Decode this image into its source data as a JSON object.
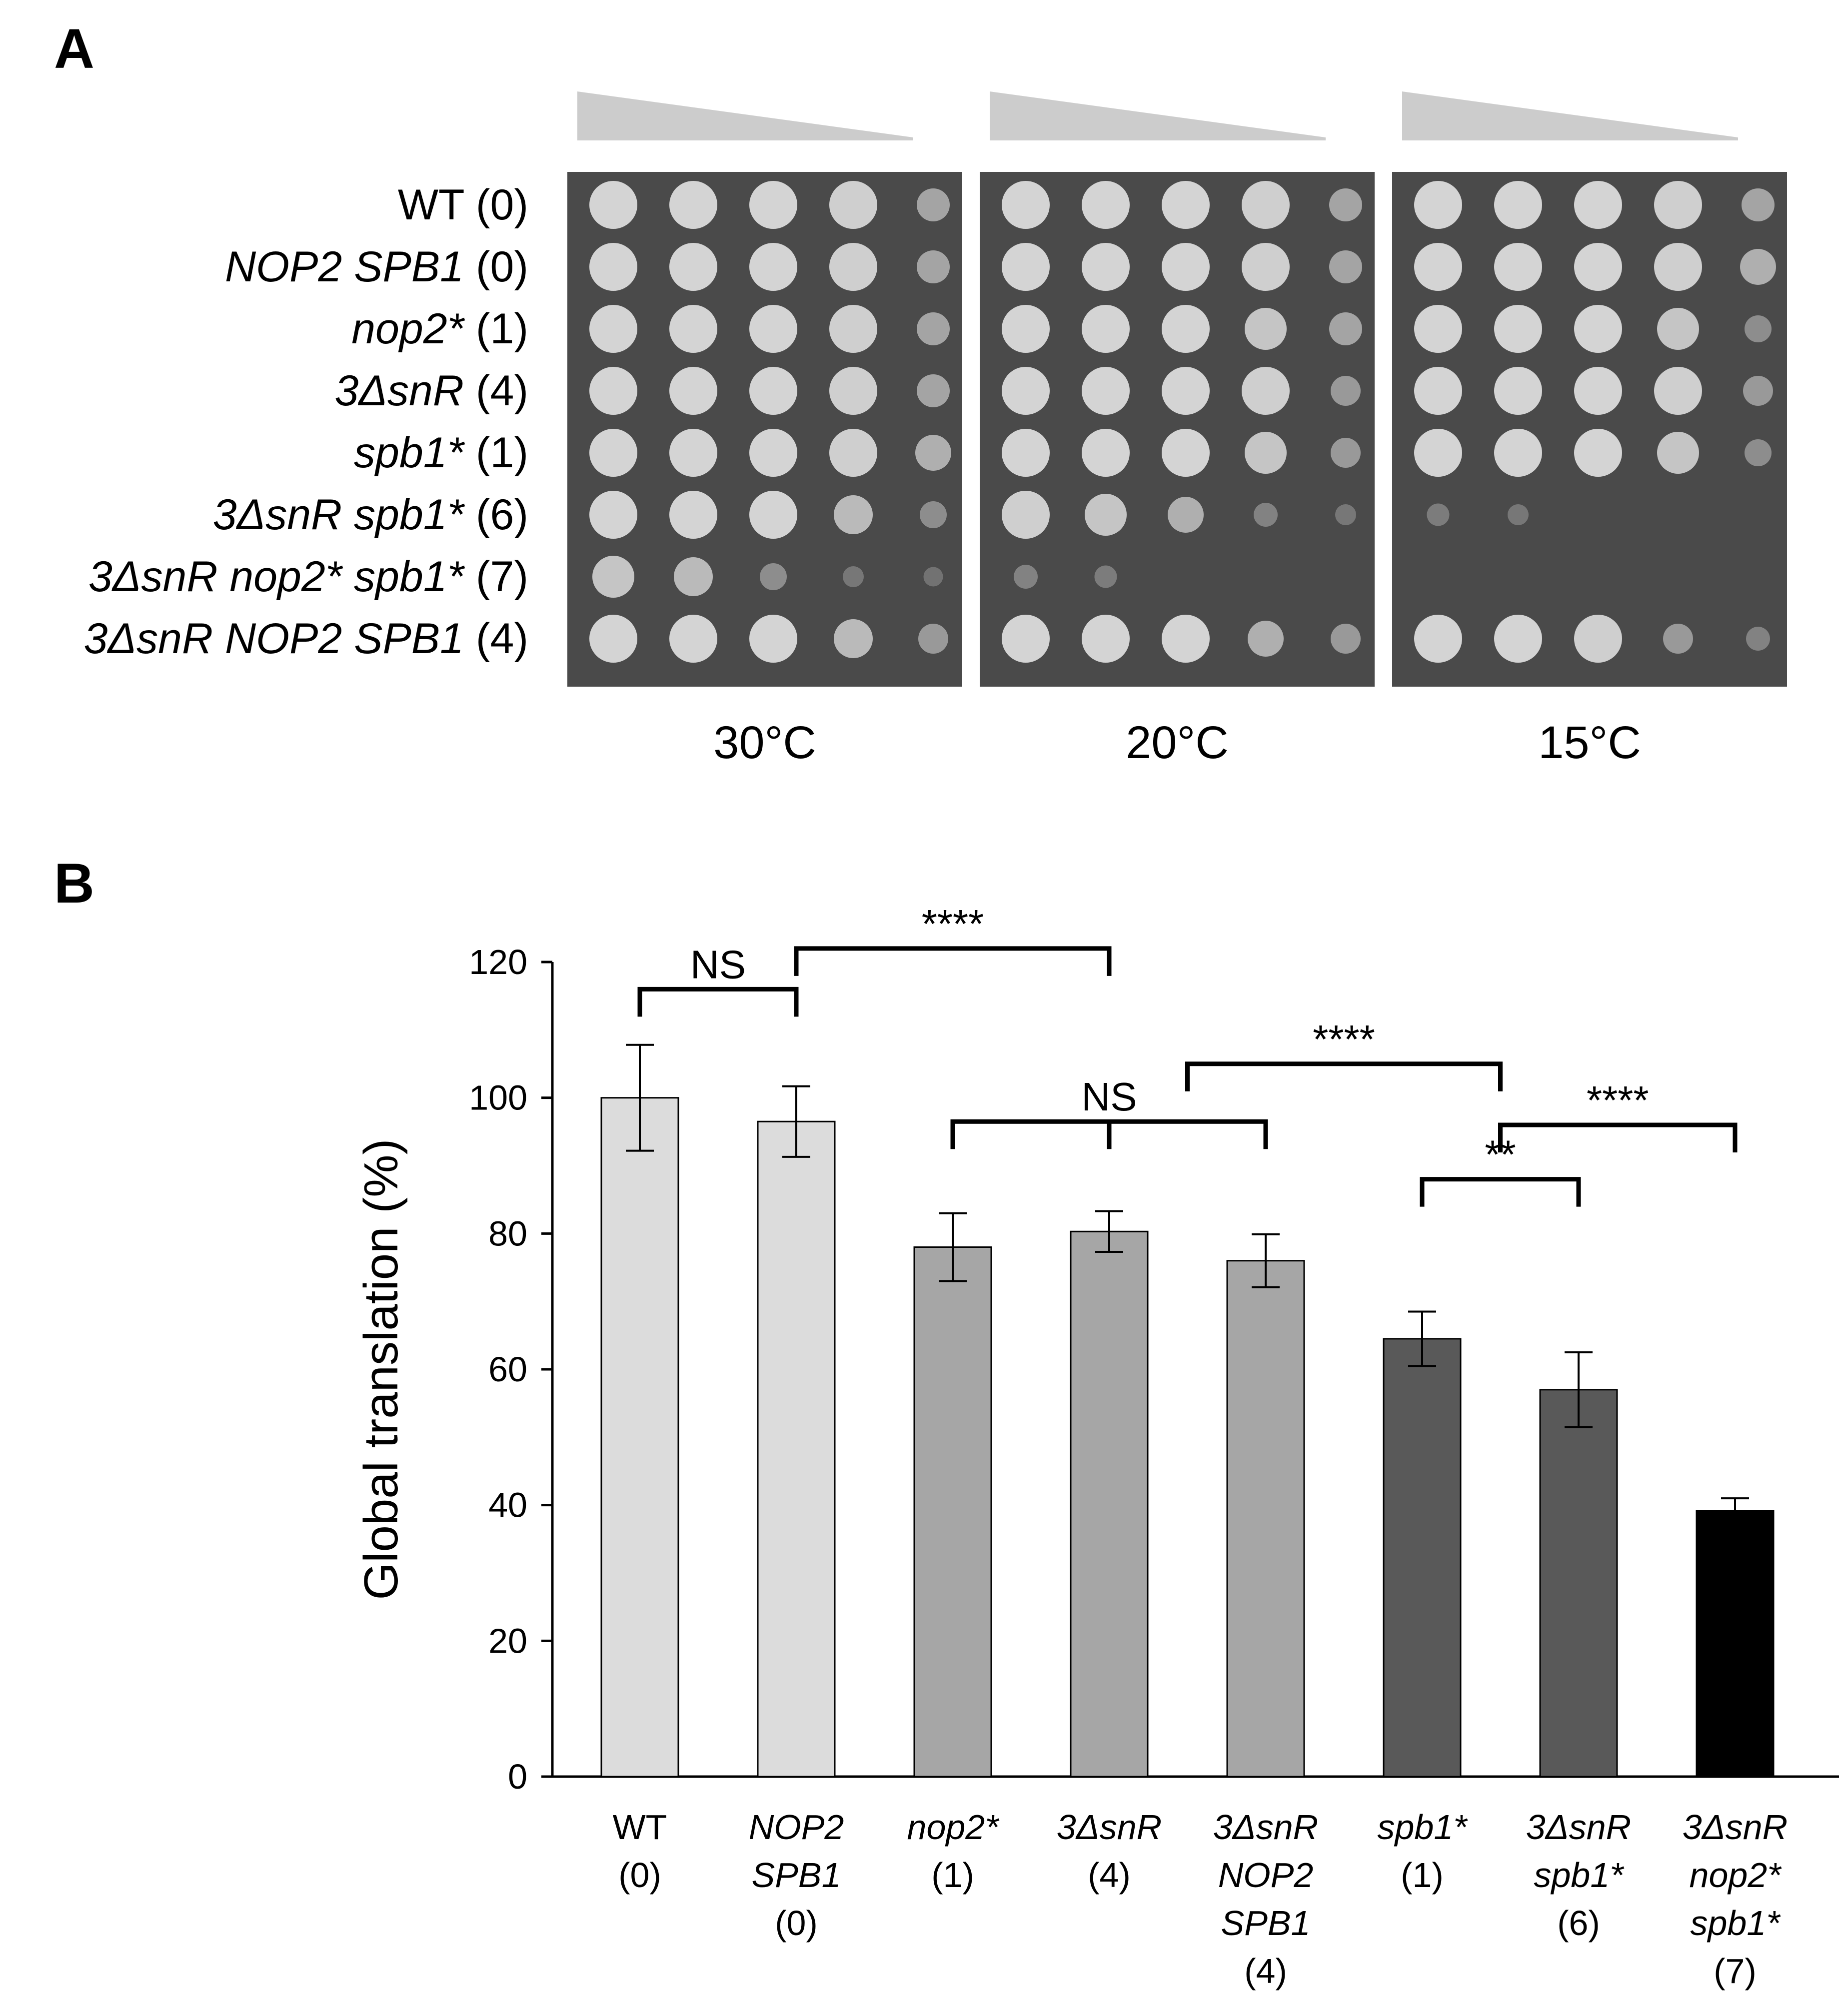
{
  "panel_a": {
    "letter": "A",
    "strains": [
      {
        "geno": "WT",
        "count": "(0)"
      },
      {
        "geno": "NOP2 SPB1",
        "count": "(0)"
      },
      {
        "geno": "nop2*",
        "count": "(1)"
      },
      {
        "geno": "3ΔsnR",
        "count": "(4)"
      },
      {
        "geno": "spb1*",
        "count": "(1)"
      },
      {
        "geno": "3ΔsnR spb1*",
        "count": "(6)"
      },
      {
        "geno": "3ΔsnR nop2* spb1*",
        "count": "(7)"
      },
      {
        "geno": "3ΔsnR NOP2 SPB1",
        "count": "(4)"
      }
    ],
    "temperatures": [
      "30°C",
      "20°C",
      "15°C"
    ],
    "plate_color": "#4a4a4a",
    "colony_color": "#d4d4d4",
    "wedge_color": "#cccccc",
    "growth_levels": [
      [
        [
          1,
          1,
          1,
          0.9,
          0.5
        ],
        [
          1,
          1,
          1,
          0.9,
          0.5
        ],
        [
          1,
          1,
          1,
          0.9,
          0.5
        ]
      ],
      [
        [
          1,
          1,
          1,
          0.9,
          0.5
        ],
        [
          1,
          1,
          1,
          0.9,
          0.5
        ],
        [
          1,
          1,
          1,
          0.9,
          0.6
        ]
      ],
      [
        [
          1,
          1,
          1,
          0.9,
          0.5
        ],
        [
          1,
          1,
          1,
          0.8,
          0.5
        ],
        [
          1,
          1,
          1,
          0.8,
          0.3
        ]
      ],
      [
        [
          1,
          1,
          1,
          0.9,
          0.5
        ],
        [
          1,
          1,
          1,
          0.9,
          0.4
        ],
        [
          1,
          1,
          1,
          0.9,
          0.4
        ]
      ],
      [
        [
          1,
          1,
          1,
          0.9,
          0.6
        ],
        [
          1,
          1,
          1,
          0.8,
          0.4
        ],
        [
          1,
          1,
          1,
          0.8,
          0.3
        ]
      ],
      [
        [
          1,
          1,
          1,
          0.7,
          0.3
        ],
        [
          0.9,
          0.8,
          0.6,
          0.2,
          0.1
        ],
        [
          0.15,
          0.1,
          0,
          0,
          0
        ]
      ],
      [
        [
          0.8,
          0.7,
          0.3,
          0.1,
          0.05
        ],
        [
          0.2,
          0.15,
          0,
          0,
          0
        ],
        [
          0,
          0,
          0,
          0,
          0
        ]
      ],
      [
        [
          1,
          1,
          1,
          0.7,
          0.4
        ],
        [
          1,
          1,
          1,
          0.6,
          0.4
        ],
        [
          1,
          1,
          0.9,
          0.4,
          0.2
        ]
      ]
    ]
  },
  "panel_b": {
    "letter": "B"
  },
  "chart_data": {
    "type": "bar",
    "ylabel": "Global translation (%)",
    "ylim": [
      0,
      120
    ],
    "yticks": [
      0,
      20,
      40,
      60,
      80,
      100,
      120
    ],
    "categories": [
      {
        "lines": [
          "WT",
          "(0)"
        ],
        "italic": [
          false,
          false
        ]
      },
      {
        "lines": [
          "NOP2",
          "SPB1",
          "(0)"
        ],
        "italic": [
          true,
          true,
          false
        ]
      },
      {
        "lines": [
          "nop2*",
          "(1)"
        ],
        "italic": [
          true,
          false
        ]
      },
      {
        "lines": [
          "3ΔsnR",
          "(4)"
        ],
        "italic": [
          true,
          false
        ]
      },
      {
        "lines": [
          "3ΔsnR",
          "NOP2",
          "SPB1",
          "(4)"
        ],
        "italic": [
          true,
          true,
          true,
          false
        ]
      },
      {
        "lines": [
          "spb1*",
          "(1)"
        ],
        "italic": [
          true,
          false
        ]
      },
      {
        "lines": [
          "3ΔsnR",
          "spb1*",
          "(6)"
        ],
        "italic": [
          true,
          true,
          false
        ]
      },
      {
        "lines": [
          "3ΔsnR",
          "nop2*",
          "spb1*",
          "(7)"
        ],
        "italic": [
          true,
          true,
          true,
          false
        ]
      }
    ],
    "values": [
      100,
      96.5,
      78,
      80.3,
      76,
      64.5,
      57,
      39.2
    ],
    "errors": [
      7.8,
      5.2,
      5,
      3,
      3.9,
      4,
      5.5,
      1.8
    ],
    "colors": [
      "#dcdcdc",
      "#dcdcdc",
      "#a6a6a6",
      "#a6a6a6",
      "#a6a6a6",
      "#595959",
      "#595959",
      "#000000"
    ],
    "significance": [
      {
        "label": "NS",
        "from": 0,
        "to": 1,
        "y": 116
      },
      {
        "label": "****",
        "from": 1,
        "to": 3,
        "y": 122
      },
      {
        "label": "NS",
        "from": 2,
        "to": 4,
        "y": 96.5,
        "mid": 3
      },
      {
        "label": "****",
        "from": 3.5,
        "to": 5.5,
        "y": 105
      },
      {
        "label": "****",
        "from": 5.5,
        "to": 7,
        "y": 96
      },
      {
        "label": "**",
        "from": 5,
        "to": 6,
        "y": 88
      }
    ]
  }
}
